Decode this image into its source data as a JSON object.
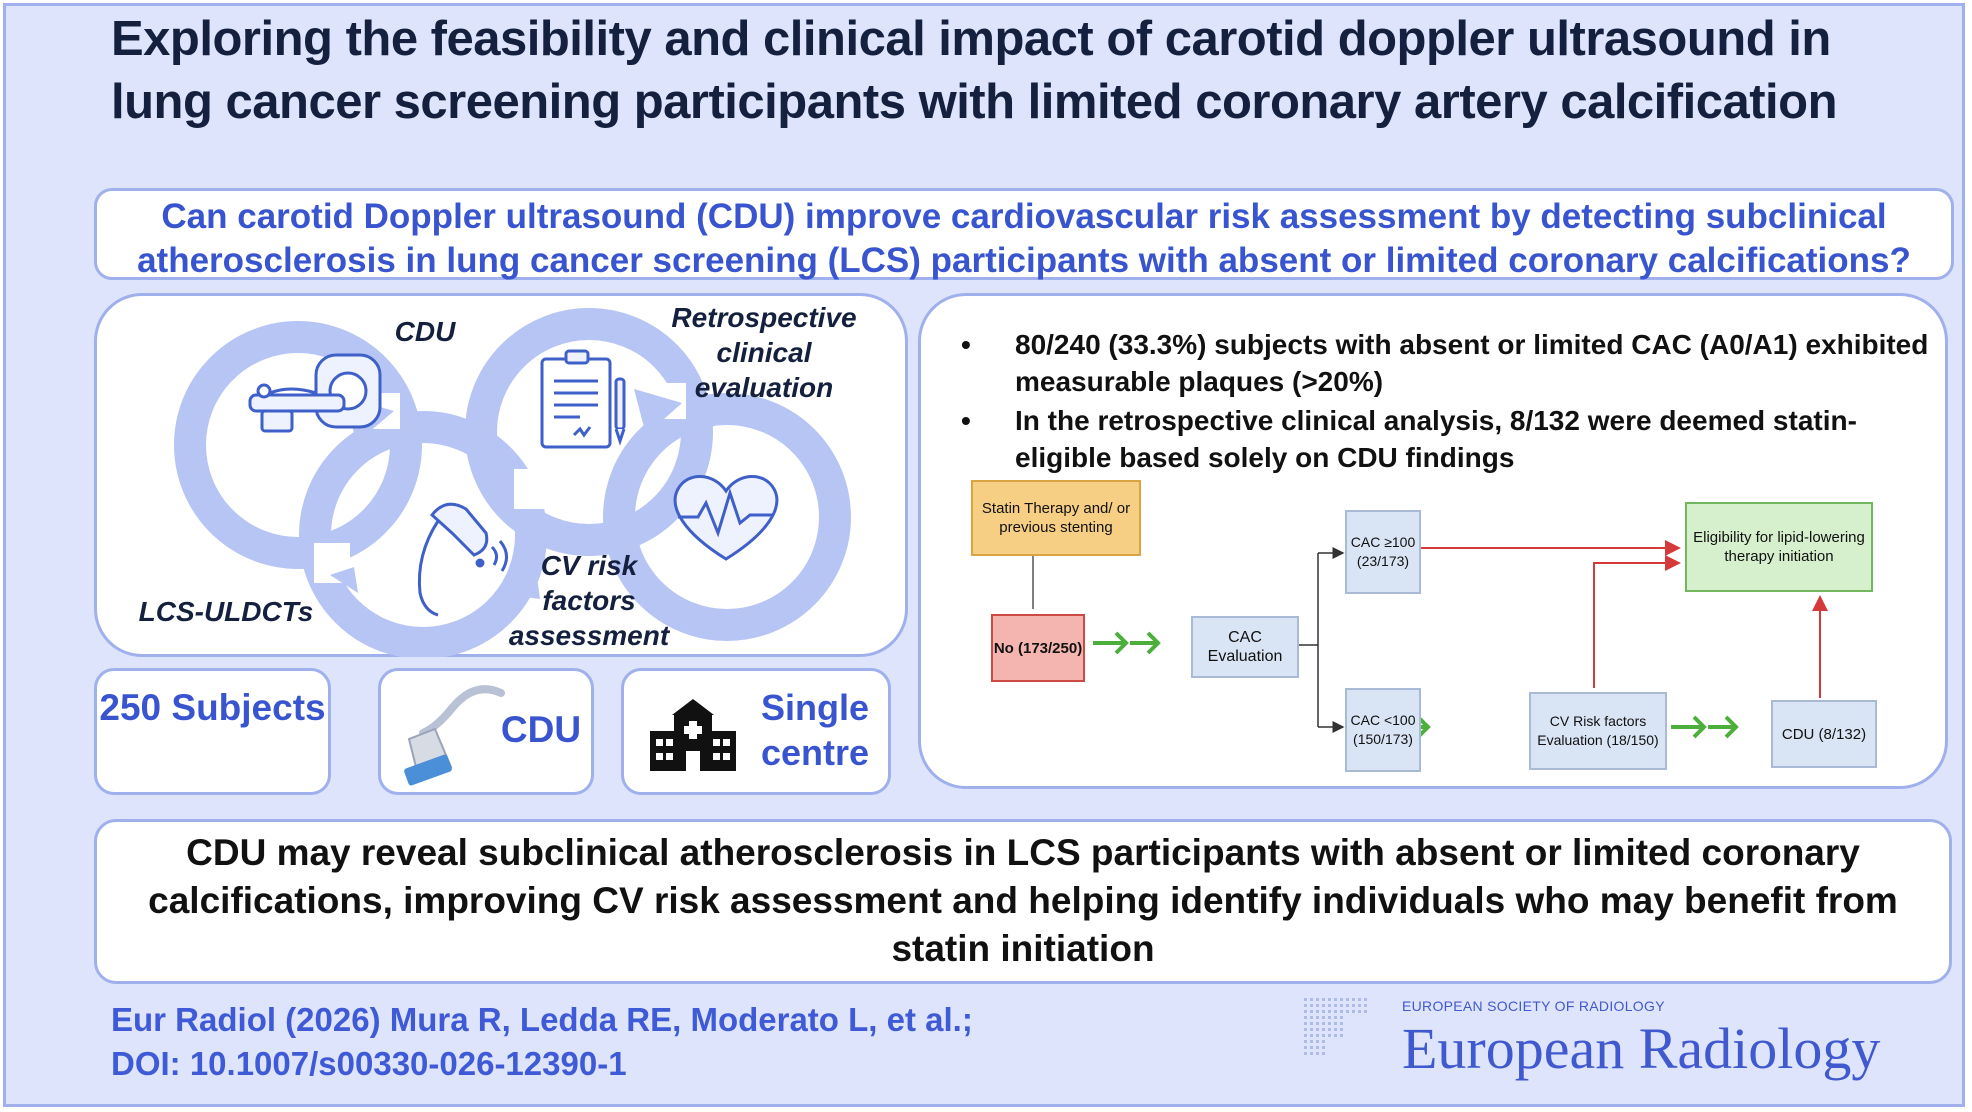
{
  "title": "Exploring the feasibility and clinical impact of carotid doppler ultrasound in lung cancer screening participants with limited coronary artery calcification",
  "question": "Can carotid Doppler ultrasound (CDU) improve cardiovascular risk assessment by detecting subclinical atherosclerosis in lung cancer screening (LCS) participants with absent or limited coronary calcifications?",
  "cycle": {
    "labels": {
      "cdu": "CDU",
      "retro": "Retrospective clinical evaluation",
      "lcs": "LCS-ULDCTs",
      "cvrisk": "CV risk factors assessment"
    },
    "icons": [
      "ct-scanner-icon",
      "ultrasound-probe-icon",
      "clipboard-document-icon",
      "heart-rate-icon"
    ]
  },
  "stats": {
    "subjects": "250 Subjects",
    "cdu": "CDU",
    "centre": "Single centre"
  },
  "results": {
    "bullets": [
      "80/240 (33.3%) subjects with absent or limited CAC (A0/A1) exhibited measurable plaques (>20%)",
      "In the retrospective clinical analysis, 8/132 were deemed statin-eligible based solely on CDU findings"
    ]
  },
  "flow": {
    "statin": "Statin Therapy and/ or previous stenting",
    "no": "No (173/250)",
    "cac_eval": "CAC Evaluation",
    "cac_high": "CAC ≥100 (23/173)",
    "cac_low": "CAC <100 (150/173)",
    "cv_eval": "CV Risk factors Evaluation (18/150)",
    "cdu": "CDU (8/132)",
    "elig": "Eligibility for lipid-lowering therapy initiation"
  },
  "conclusion": "CDU may reveal subclinical atherosclerosis in LCS participants with absent or limited coronary calcifications, improving CV risk assessment and helping identify individuals who may benefit from statin initiation",
  "citation": {
    "line1": "Eur Radiol (2026) Mura R, Ledda RE, Moderato L, et al.;",
    "line2": "DOI: 10.1007/s00330-026-12390-1"
  },
  "journal": {
    "society": "EUROPEAN SOCIETY OF RADIOLOGY",
    "name": "European Radiology"
  },
  "colors": {
    "frame_bg": "#dde4fb",
    "border": "#9fb0ec",
    "accent_blue": "#3954cf",
    "arrow_green": "#4caf3c",
    "arrow_red": "#d43a3a",
    "statin_box": "#f6cf85",
    "no_box": "#f4b5b0",
    "elig_box": "#d6f0cd",
    "cac_box": "#d9e4f4"
  }
}
